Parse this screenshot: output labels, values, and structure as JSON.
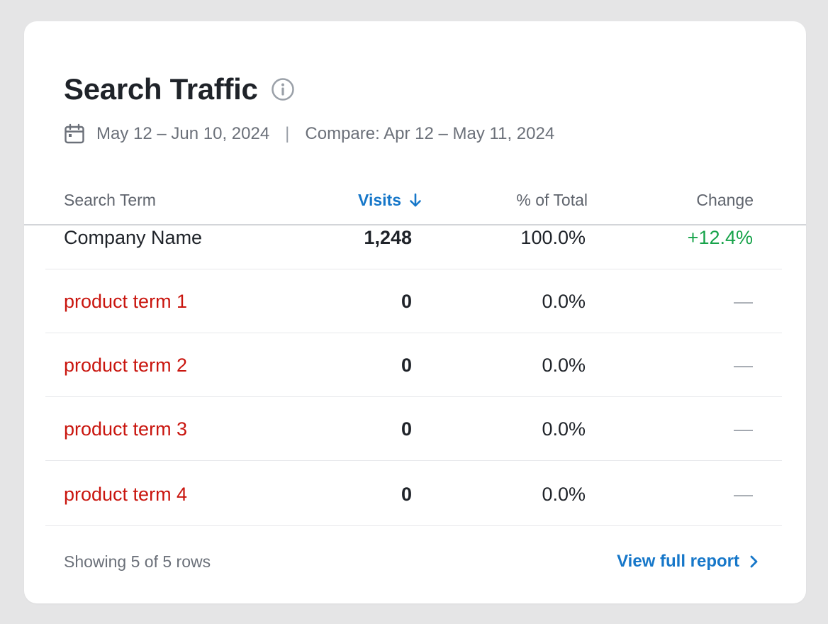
{
  "card": {
    "title": "Search Traffic",
    "info_icon": "info-circle-icon",
    "date_range": "May 12 – Jun 10, 2024",
    "separator": "|",
    "compare": "Compare: Apr 12 – May 11, 2024",
    "calendar_icon": "calendar-icon"
  },
  "table": {
    "headers": {
      "term": "Search Term",
      "visits": "Visits",
      "pct": "% of Total",
      "change": "Change"
    },
    "sort_icon": "arrow-down-icon",
    "rows": [
      {
        "term": "Company Name",
        "visits": "1,248",
        "pct": "100.0%",
        "change": "+12.4%"
      },
      {
        "term": "product term 1",
        "visits": "0",
        "pct": "0.0%",
        "change": "—"
      },
      {
        "term": "product term 2",
        "visits": "0",
        "pct": "0.0%",
        "change": "—"
      },
      {
        "term": "product term 3",
        "visits": "0",
        "pct": "0.0%",
        "change": "—"
      },
      {
        "term": "product term 4",
        "visits": "0",
        "pct": "0.0%",
        "change": "—"
      }
    ]
  },
  "footer": {
    "showing": "Showing 5 of 5 rows",
    "link": "View full report",
    "link_icon": "chevron-right-icon"
  },
  "colors": {
    "accent": "#1677c9",
    "negative_term": "#c9150e",
    "positive_change": "#17a34a",
    "title": "#1f2329"
  }
}
